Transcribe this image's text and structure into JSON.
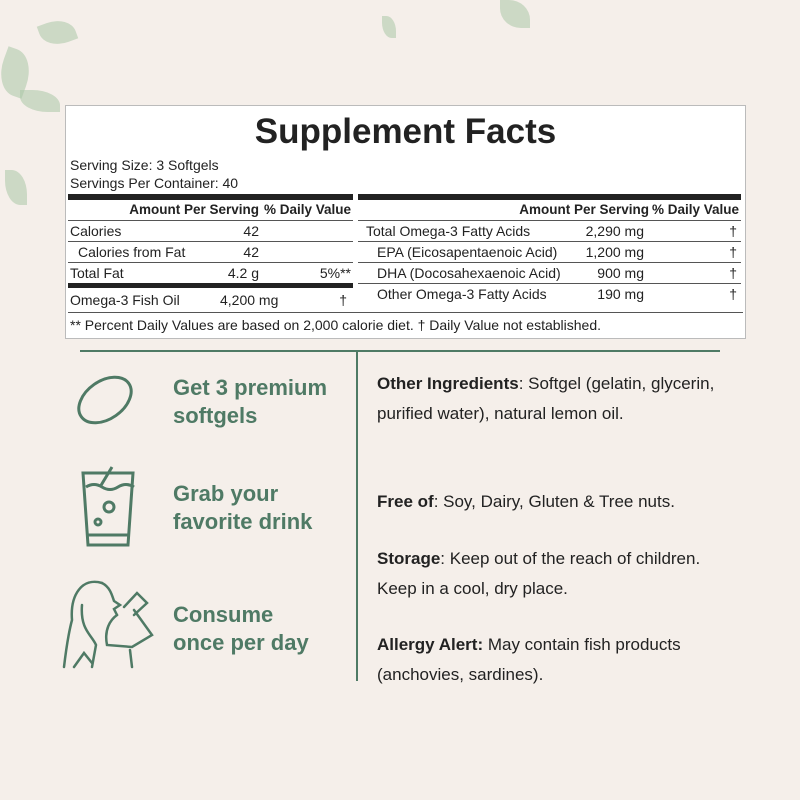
{
  "label": {
    "title": "Supplement Facts",
    "serving_size": "Serving Size: 3 Softgels",
    "servings_per_container": "Servings Per Container: 40",
    "header": {
      "amount": "Amount Per Serving",
      "dv": "% Daily Value"
    },
    "left_rows": [
      {
        "name": "Calories",
        "amount": "42",
        "dv": ""
      },
      {
        "name": "Calories from Fat",
        "amount": "42",
        "dv": ""
      },
      {
        "name": "Total Fat",
        "amount": "4.2 g",
        "dv": "5%**"
      },
      {
        "name": "Omega-3 Fish Oil",
        "amount": "4,200 mg",
        "dv": "†"
      }
    ],
    "right_rows": [
      {
        "name": "Total Omega-3 Fatty Acids",
        "amount": "2,290 mg",
        "dv": "†"
      },
      {
        "name": "EPA (Eicosapentaenoic Acid)",
        "amount": "1,200 mg",
        "dv": "†"
      },
      {
        "name": "DHA (Docosahexaenoic Acid)",
        "amount": "900 mg",
        "dv": "†"
      },
      {
        "name": "Other Omega-3 Fatty Acids",
        "amount": "190 mg",
        "dv": "†"
      }
    ],
    "footnote": "** Percent Daily Values are based on 2,000 calorie diet. † Daily Value not established."
  },
  "steps": [
    {
      "icon": "softgel-icon",
      "line1": "Get 3 premium",
      "line2": "softgels"
    },
    {
      "icon": "drink-glass-icon",
      "line1": "Grab your",
      "line2": "favorite drink"
    },
    {
      "icon": "woman-drinking-icon",
      "line1": "Consume",
      "line2": "once per day"
    }
  ],
  "info": [
    {
      "key": "Other Ingredients",
      "text": ": Softgel (gelatin, glycerin, purified water), natural lemon oil."
    },
    {
      "key": "Free of",
      "text": ": Soy, Dairy, Gluten & Tree nuts."
    },
    {
      "key": "Storage",
      "text": ": Keep out of the reach of children. Keep in a cool, dry place."
    },
    {
      "key": "Allergy Alert:",
      "text": " May contain fish products (anchovies, sardines)."
    }
  ],
  "colors": {
    "accent": "#4f7a65",
    "background": "#f5efea"
  }
}
